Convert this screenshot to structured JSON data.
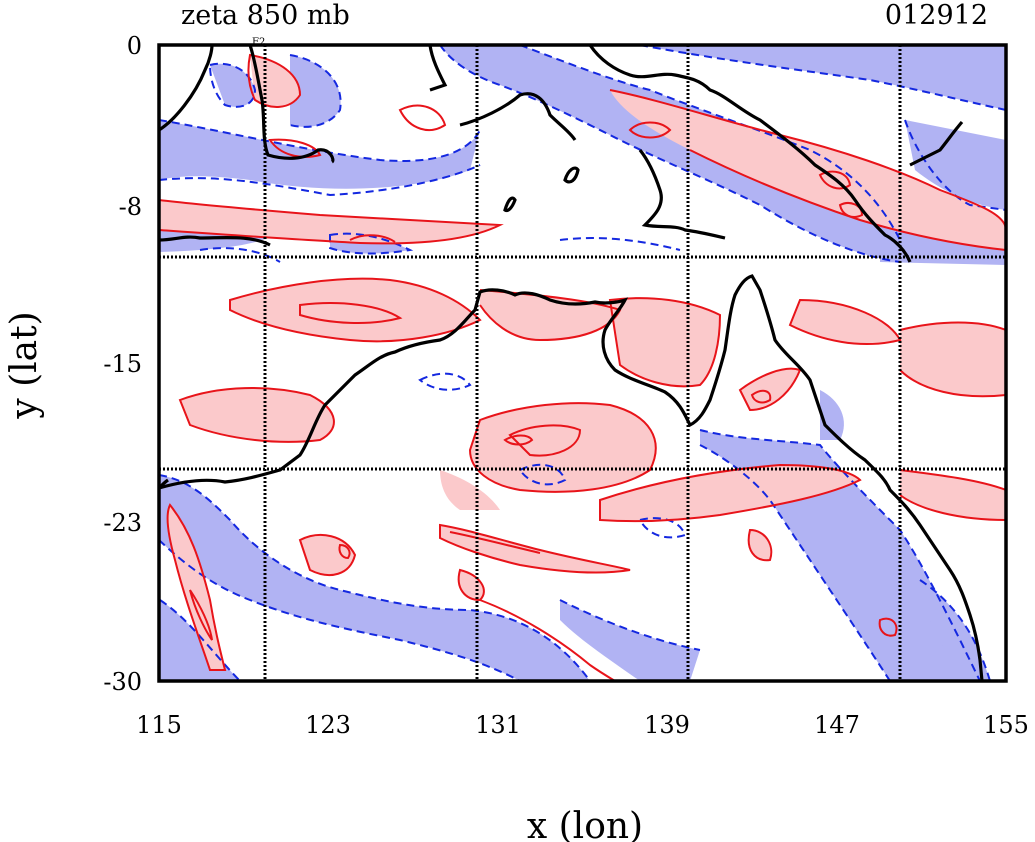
{
  "header": {
    "title": "zeta 850 mb",
    "timestamp": "012912",
    "corner_tag": "F2"
  },
  "chart_data": {
    "type": "contour",
    "variable": "zeta 850 mb",
    "xlabel": "x (lon)",
    "ylabel": "y (lat)",
    "xlim": [
      115,
      155
    ],
    "ylim": [
      -30,
      0
    ],
    "xticks": [
      "115",
      "123",
      "131",
      "139",
      "147",
      "155"
    ],
    "yticks": [
      "0",
      "-8",
      "-15",
      "-23",
      "-30"
    ],
    "grid_lines": {
      "lon": [
        120,
        130,
        140,
        150
      ],
      "lat": [
        -10,
        -20
      ]
    },
    "contours": {
      "positive": {
        "color": "#e8141a",
        "fill": "#fbc9cb",
        "line": "solid"
      },
      "negative": {
        "color": "#1428e0",
        "fill": "#b1b3f3",
        "line": "dashed"
      }
    },
    "coastline_color": "#000000"
  }
}
